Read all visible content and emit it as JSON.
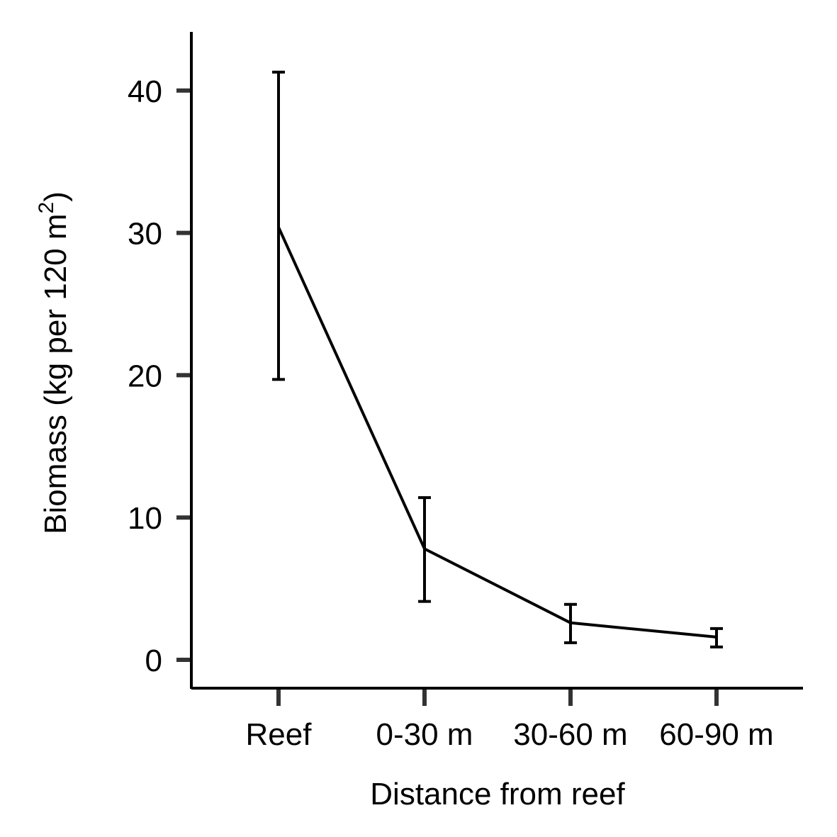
{
  "chart_data": {
    "type": "line",
    "categories": [
      "Reef",
      "0-30 m",
      "30-60 m",
      "60-90 m"
    ],
    "series": [
      {
        "values": [
          30.4,
          7.8,
          2.6,
          1.6
        ],
        "error_low": [
          19.7,
          4.1,
          1.2,
          0.9
        ],
        "error_high": [
          41.3,
          11.4,
          3.9,
          2.2
        ]
      }
    ],
    "xlabel": "Distance from reef",
    "ylabel_main": "Biomass (kg per 120 m",
    "ylabel_sup": "2",
    "ylabel_close": ")",
    "yticks": [
      0,
      10,
      20,
      30,
      40
    ],
    "ylim": [
      -2,
      44
    ],
    "grid": false,
    "line_color": "#000000",
    "axis_color": "#000000",
    "tick_color": "#333333"
  }
}
